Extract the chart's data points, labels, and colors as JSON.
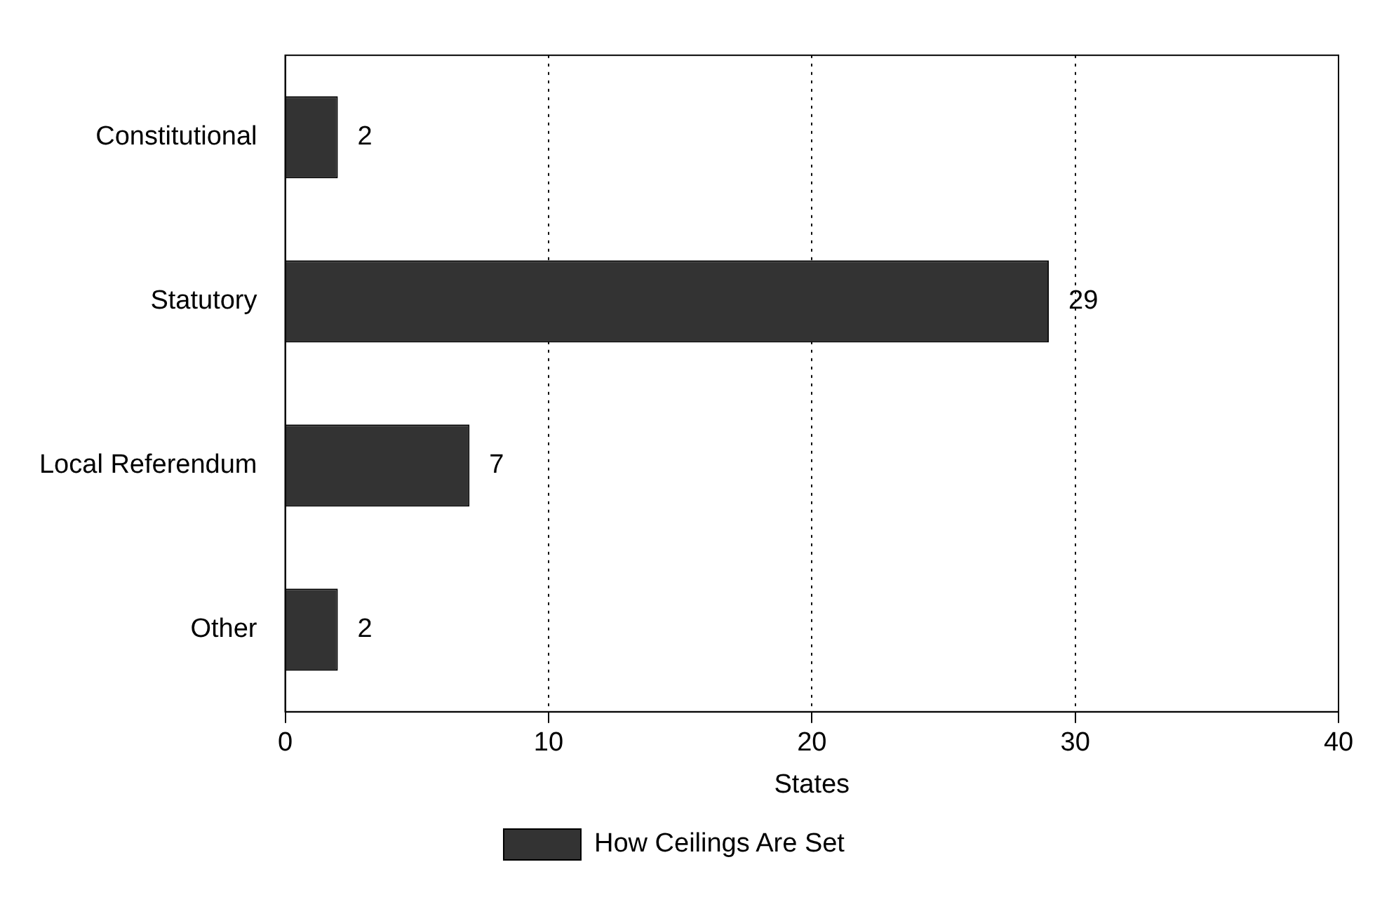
{
  "chart_data": {
    "type": "bar",
    "orientation": "horizontal",
    "xlabel": "States",
    "categories": [
      "Constitutional",
      "Statutory",
      "Local Referendum",
      "Other"
    ],
    "series": [
      {
        "name": "How Ceilings Are Set",
        "color": "#333333",
        "values": [
          2,
          29,
          7,
          2
        ]
      }
    ],
    "xlim": [
      0,
      40
    ],
    "xticks": [
      0,
      10,
      20,
      30,
      40
    ],
    "grid": "x",
    "legend": "bottom",
    "data_labels": true
  }
}
